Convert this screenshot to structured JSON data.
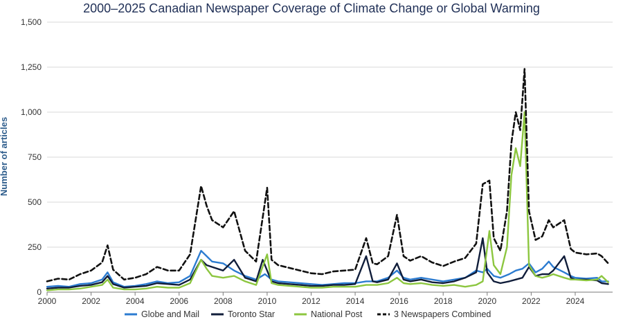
{
  "chart_data": {
    "type": "line",
    "title": "2000–2025 Canadian Newspaper Coverage of Climate Change or Global Warming",
    "xlabel": "",
    "ylabel": "Number of articles",
    "xlim": [
      2000,
      2025.7
    ],
    "ylim": [
      0,
      1500
    ],
    "x_ticks": [
      2000,
      2002,
      2004,
      2006,
      2008,
      2010,
      2012,
      2014,
      2016,
      2018,
      2020,
      2022,
      2024
    ],
    "y_ticks": [
      0,
      250,
      500,
      750,
      1000,
      1250,
      1500
    ],
    "y_tick_labels": [
      "0",
      "250",
      "500",
      "750",
      "1,000",
      "1,250",
      "1,500"
    ],
    "grid": true,
    "legend_position": "bottom",
    "series": [
      {
        "name": "Globe and Mail",
        "color": "#2b7bd0",
        "dash": "solid",
        "points": [
          [
            2000.0,
            30
          ],
          [
            2000.5,
            35
          ],
          [
            2001.0,
            30
          ],
          [
            2001.5,
            45
          ],
          [
            2002.0,
            50
          ],
          [
            2002.5,
            70
          ],
          [
            2002.75,
            110
          ],
          [
            2003.0,
            55
          ],
          [
            2003.5,
            30
          ],
          [
            2004.0,
            35
          ],
          [
            2004.5,
            45
          ],
          [
            2005.0,
            60
          ],
          [
            2005.5,
            50
          ],
          [
            2006.0,
            55
          ],
          [
            2006.5,
            90
          ],
          [
            2007.0,
            230
          ],
          [
            2007.25,
            200
          ],
          [
            2007.5,
            170
          ],
          [
            2008.0,
            160
          ],
          [
            2008.5,
            120
          ],
          [
            2009.0,
            90
          ],
          [
            2009.5,
            70
          ],
          [
            2009.9,
            100
          ],
          [
            2010.2,
            70
          ],
          [
            2010.5,
            60
          ],
          [
            2011.0,
            55
          ],
          [
            2011.5,
            50
          ],
          [
            2012.0,
            45
          ],
          [
            2012.5,
            40
          ],
          [
            2013.0,
            45
          ],
          [
            2013.5,
            50
          ],
          [
            2014.0,
            50
          ],
          [
            2014.5,
            60
          ],
          [
            2015.0,
            60
          ],
          [
            2015.5,
            80
          ],
          [
            2015.9,
            120
          ],
          [
            2016.2,
            80
          ],
          [
            2016.5,
            70
          ],
          [
            2017.0,
            80
          ],
          [
            2017.5,
            70
          ],
          [
            2018.0,
            60
          ],
          [
            2018.5,
            70
          ],
          [
            2019.0,
            80
          ],
          [
            2019.5,
            120
          ],
          [
            2019.8,
            110
          ],
          [
            2020.0,
            130
          ],
          [
            2020.3,
            90
          ],
          [
            2020.6,
            80
          ],
          [
            2021.0,
            100
          ],
          [
            2021.3,
            120
          ],
          [
            2021.6,
            130
          ],
          [
            2021.9,
            160
          ],
          [
            2022.2,
            110
          ],
          [
            2022.5,
            130
          ],
          [
            2022.8,
            170
          ],
          [
            2023.0,
            140
          ],
          [
            2023.5,
            110
          ],
          [
            2023.8,
            90
          ],
          [
            2024.0,
            80
          ],
          [
            2024.5,
            75
          ],
          [
            2025.0,
            80
          ],
          [
            2025.2,
            60
          ],
          [
            2025.5,
            60
          ]
        ]
      },
      {
        "name": "Toronto Star",
        "color": "#101d3a",
        "dash": "solid",
        "points": [
          [
            2000.0,
            20
          ],
          [
            2000.5,
            25
          ],
          [
            2001.0,
            25
          ],
          [
            2001.5,
            35
          ],
          [
            2002.0,
            40
          ],
          [
            2002.5,
            55
          ],
          [
            2002.75,
            90
          ],
          [
            2003.0,
            45
          ],
          [
            2003.5,
            25
          ],
          [
            2004.0,
            30
          ],
          [
            2004.5,
            35
          ],
          [
            2005.0,
            50
          ],
          [
            2005.5,
            45
          ],
          [
            2006.0,
            40
          ],
          [
            2006.5,
            70
          ],
          [
            2007.0,
            180
          ],
          [
            2007.25,
            150
          ],
          [
            2007.5,
            140
          ],
          [
            2008.0,
            120
          ],
          [
            2008.5,
            180
          ],
          [
            2009.0,
            80
          ],
          [
            2009.5,
            60
          ],
          [
            2009.8,
            180
          ],
          [
            2010.2,
            60
          ],
          [
            2010.5,
            50
          ],
          [
            2011.0,
            45
          ],
          [
            2011.5,
            40
          ],
          [
            2012.0,
            35
          ],
          [
            2012.5,
            35
          ],
          [
            2013.0,
            40
          ],
          [
            2013.5,
            40
          ],
          [
            2014.0,
            45
          ],
          [
            2014.5,
            200
          ],
          [
            2014.8,
            60
          ],
          [
            2015.0,
            55
          ],
          [
            2015.5,
            70
          ],
          [
            2015.9,
            160
          ],
          [
            2016.2,
            70
          ],
          [
            2016.5,
            60
          ],
          [
            2017.0,
            70
          ],
          [
            2017.5,
            55
          ],
          [
            2018.0,
            50
          ],
          [
            2018.5,
            60
          ],
          [
            2019.0,
            80
          ],
          [
            2019.5,
            110
          ],
          [
            2019.8,
            300
          ],
          [
            2020.0,
            110
          ],
          [
            2020.3,
            60
          ],
          [
            2020.6,
            50
          ],
          [
            2021.0,
            60
          ],
          [
            2021.3,
            70
          ],
          [
            2021.6,
            80
          ],
          [
            2021.9,
            140
          ],
          [
            2022.2,
            90
          ],
          [
            2022.5,
            100
          ],
          [
            2022.8,
            100
          ],
          [
            2023.0,
            120
          ],
          [
            2023.5,
            200
          ],
          [
            2023.8,
            80
          ],
          [
            2024.0,
            70
          ],
          [
            2024.5,
            70
          ],
          [
            2025.0,
            65
          ],
          [
            2025.2,
            50
          ],
          [
            2025.5,
            45
          ]
        ]
      },
      {
        "name": "National Post",
        "color": "#8cc63f",
        "dash": "solid",
        "points": [
          [
            2000.0,
            10
          ],
          [
            2000.5,
            15
          ],
          [
            2001.0,
            15
          ],
          [
            2001.5,
            20
          ],
          [
            2002.0,
            30
          ],
          [
            2002.5,
            40
          ],
          [
            2002.75,
            70
          ],
          [
            2003.0,
            25
          ],
          [
            2003.5,
            15
          ],
          [
            2004.0,
            15
          ],
          [
            2004.5,
            20
          ],
          [
            2005.0,
            30
          ],
          [
            2005.5,
            25
          ],
          [
            2006.0,
            25
          ],
          [
            2006.5,
            50
          ],
          [
            2007.0,
            180
          ],
          [
            2007.25,
            130
          ],
          [
            2007.5,
            90
          ],
          [
            2008.0,
            80
          ],
          [
            2008.5,
            90
          ],
          [
            2009.0,
            60
          ],
          [
            2009.5,
            40
          ],
          [
            2010.0,
            210
          ],
          [
            2010.2,
            50
          ],
          [
            2010.5,
            40
          ],
          [
            2011.0,
            35
          ],
          [
            2011.5,
            30
          ],
          [
            2012.0,
            25
          ],
          [
            2012.5,
            25
          ],
          [
            2013.0,
            30
          ],
          [
            2013.5,
            30
          ],
          [
            2014.0,
            30
          ],
          [
            2014.5,
            40
          ],
          [
            2015.0,
            40
          ],
          [
            2015.5,
            50
          ],
          [
            2015.9,
            80
          ],
          [
            2016.2,
            50
          ],
          [
            2016.5,
            45
          ],
          [
            2017.0,
            50
          ],
          [
            2017.5,
            40
          ],
          [
            2018.0,
            35
          ],
          [
            2018.5,
            40
          ],
          [
            2019.0,
            30
          ],
          [
            2019.5,
            40
          ],
          [
            2019.8,
            60
          ],
          [
            2020.1,
            340
          ],
          [
            2020.3,
            150
          ],
          [
            2020.6,
            100
          ],
          [
            2020.9,
            250
          ],
          [
            2021.1,
            650
          ],
          [
            2021.3,
            800
          ],
          [
            2021.5,
            700
          ],
          [
            2021.7,
            1000
          ],
          [
            2021.9,
            150
          ],
          [
            2022.2,
            90
          ],
          [
            2022.5,
            80
          ],
          [
            2022.8,
            90
          ],
          [
            2023.0,
            100
          ],
          [
            2023.5,
            80
          ],
          [
            2023.8,
            70
          ],
          [
            2024.0,
            70
          ],
          [
            2024.5,
            65
          ],
          [
            2025.0,
            70
          ],
          [
            2025.2,
            90
          ],
          [
            2025.5,
            55
          ]
        ]
      },
      {
        "name": "3 Newspapers Combined",
        "color": "#111111",
        "dash": "dashed",
        "points": [
          [
            2000.0,
            60
          ],
          [
            2000.5,
            75
          ],
          [
            2001.0,
            70
          ],
          [
            2001.5,
            100
          ],
          [
            2002.0,
            120
          ],
          [
            2002.5,
            165
          ],
          [
            2002.75,
            260
          ],
          [
            2003.0,
            125
          ],
          [
            2003.5,
            70
          ],
          [
            2004.0,
            80
          ],
          [
            2004.5,
            100
          ],
          [
            2005.0,
            140
          ],
          [
            2005.5,
            120
          ],
          [
            2006.0,
            120
          ],
          [
            2006.5,
            210
          ],
          [
            2007.0,
            590
          ],
          [
            2007.25,
            480
          ],
          [
            2007.5,
            400
          ],
          [
            2008.0,
            360
          ],
          [
            2008.5,
            450
          ],
          [
            2009.0,
            230
          ],
          [
            2009.5,
            170
          ],
          [
            2010.0,
            580
          ],
          [
            2010.2,
            180
          ],
          [
            2010.5,
            150
          ],
          [
            2011.0,
            135
          ],
          [
            2011.5,
            120
          ],
          [
            2012.0,
            105
          ],
          [
            2012.5,
            100
          ],
          [
            2013.0,
            115
          ],
          [
            2013.5,
            120
          ],
          [
            2014.0,
            125
          ],
          [
            2014.5,
            300
          ],
          [
            2014.8,
            160
          ],
          [
            2015.0,
            155
          ],
          [
            2015.5,
            200
          ],
          [
            2015.9,
            430
          ],
          [
            2016.2,
            200
          ],
          [
            2016.5,
            175
          ],
          [
            2017.0,
            200
          ],
          [
            2017.5,
            165
          ],
          [
            2018.0,
            145
          ],
          [
            2018.5,
            170
          ],
          [
            2019.0,
            190
          ],
          [
            2019.5,
            270
          ],
          [
            2019.8,
            600
          ],
          [
            2020.1,
            620
          ],
          [
            2020.3,
            300
          ],
          [
            2020.6,
            230
          ],
          [
            2020.9,
            450
          ],
          [
            2021.1,
            830
          ],
          [
            2021.3,
            1000
          ],
          [
            2021.5,
            900
          ],
          [
            2021.7,
            1240
          ],
          [
            2021.9,
            450
          ],
          [
            2022.2,
            290
          ],
          [
            2022.5,
            310
          ],
          [
            2022.8,
            400
          ],
          [
            2023.0,
            360
          ],
          [
            2023.5,
            400
          ],
          [
            2023.8,
            240
          ],
          [
            2024.0,
            220
          ],
          [
            2024.5,
            210
          ],
          [
            2025.0,
            215
          ],
          [
            2025.2,
            200
          ],
          [
            2025.5,
            160
          ]
        ]
      }
    ]
  }
}
